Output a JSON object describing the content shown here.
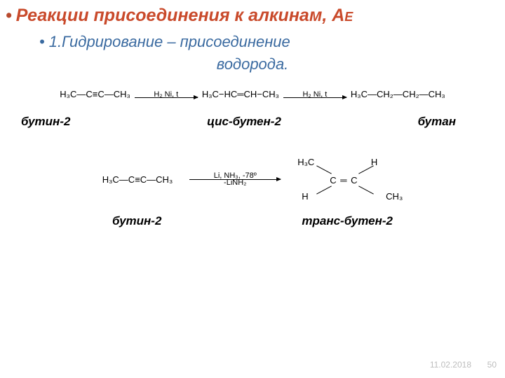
{
  "title": {
    "bullet": "•",
    "text": "Реакции присоединения к алкинам, А",
    "suffix": "E"
  },
  "subtitle": {
    "bullet": "•",
    "line1": "1.Гидрирование – присоединение",
    "line2": "водорода."
  },
  "rxn1": {
    "reactant": "H₃C―C≡C―CH₃",
    "arrow1_top": "H₂   Ni, t",
    "intermediate": "H₃C−HC═CH−CH₃",
    "arrow2_top": "H₂   Ni, t",
    "product": "H₃C―CH₂―CH₂―CH₃"
  },
  "labels1": {
    "a": "бутин-2",
    "b": "цис-бутен-2",
    "c": "бутан"
  },
  "rxn2": {
    "reactant": "H₃C―C≡C―CH₃",
    "arrow_top": "Li, NH₃, -78º",
    "arrow_bot": "-LiNH₂",
    "trans": {
      "tl": "H₃C",
      "tr": "H",
      "cc": "C ═ C",
      "bl": "H",
      "br": "CH₃"
    }
  },
  "labels2": {
    "a": "бутин-2",
    "b": "транс-бутен-2"
  },
  "footer": {
    "date": "11.02.2018",
    "page": "50"
  },
  "colors": {
    "title": "#c94a2b",
    "subtitle": "#3a6aa0",
    "footer": "#bdbdbd",
    "bg": "#ffffff"
  }
}
